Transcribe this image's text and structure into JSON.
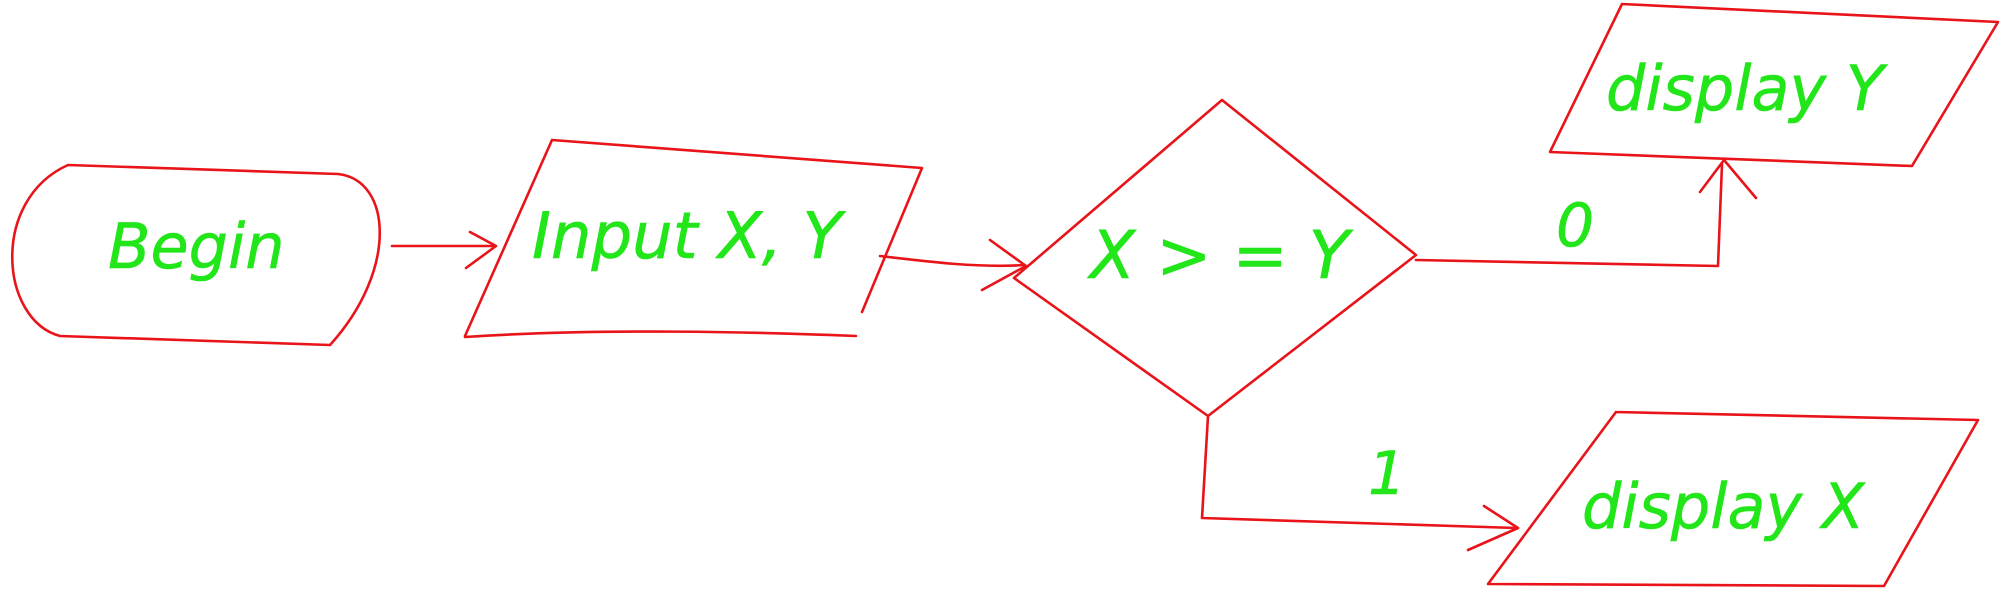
{
  "diagram": {
    "title": "",
    "type": "flowchart",
    "colors": {
      "shape_stroke": "#e8141a",
      "text": "#22e61a",
      "background": "#ffffff"
    },
    "nodes": {
      "begin": {
        "label": "Begin",
        "shape": "terminator"
      },
      "input": {
        "label": "Input X, Y",
        "shape": "parallelogram"
      },
      "decision": {
        "label": "X > = Y",
        "shape": "diamond"
      },
      "display_y": {
        "label": "display Y",
        "shape": "parallelogram"
      },
      "display_x": {
        "label": "display X",
        "shape": "parallelogram"
      }
    },
    "edges": {
      "decision_to_display_y": {
        "label": "0"
      },
      "decision_to_display_x": {
        "label": "1"
      }
    }
  }
}
